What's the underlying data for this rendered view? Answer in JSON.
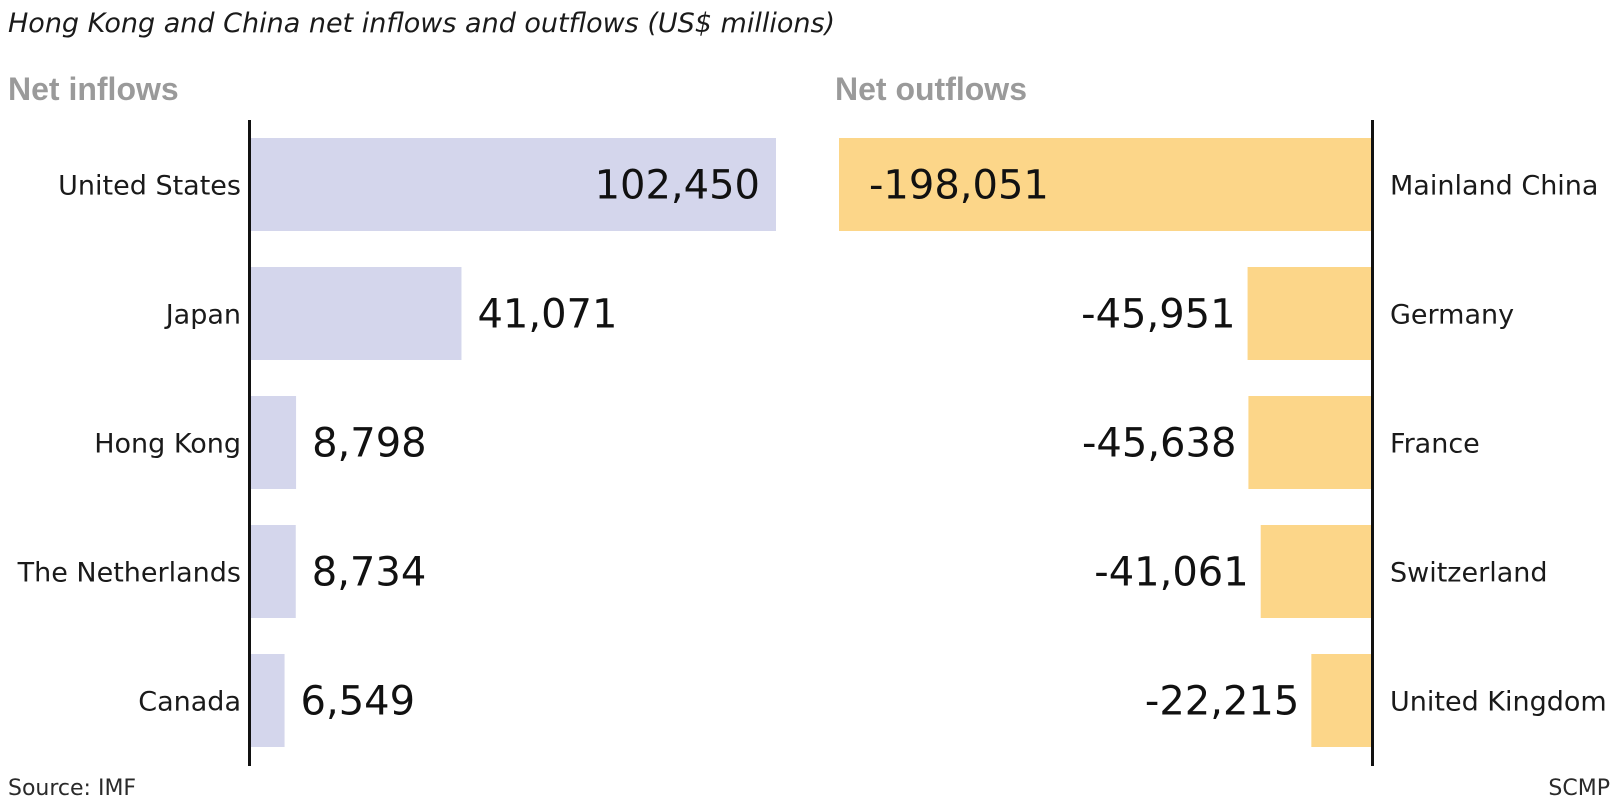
{
  "chart_data": {
    "type": "bar",
    "title": "Hong Kong and China net inflows and outflows (US$ millions)",
    "source": "Source: IMF",
    "credit": "SCMP",
    "colors": {
      "inflow": "#d4d6ec",
      "outflow": "#fcd689",
      "axis": "#111111"
    },
    "panels": [
      {
        "name": "Net inflows",
        "direction": "right",
        "categories": [
          "United States",
          "Japan",
          "Hong Kong",
          "The Netherlands",
          "Canada"
        ],
        "values": [
          102450,
          41071,
          8798,
          8734,
          6549
        ],
        "value_labels": [
          "102,450",
          "41,071",
          "8,798",
          "8,734",
          "6,549"
        ],
        "xlim": [
          0,
          102450
        ]
      },
      {
        "name": "Net outflows",
        "direction": "left",
        "categories": [
          "Mainland China",
          "Germany",
          "France",
          "Switzerland",
          "United Kingdom"
        ],
        "values": [
          -198051,
          -45951,
          -45638,
          -41061,
          -22215
        ],
        "value_labels": [
          "-198,051",
          "-45,951",
          "-45,638",
          "-41,061",
          "-22,215"
        ],
        "xlim": [
          -198051,
          0
        ]
      }
    ]
  }
}
